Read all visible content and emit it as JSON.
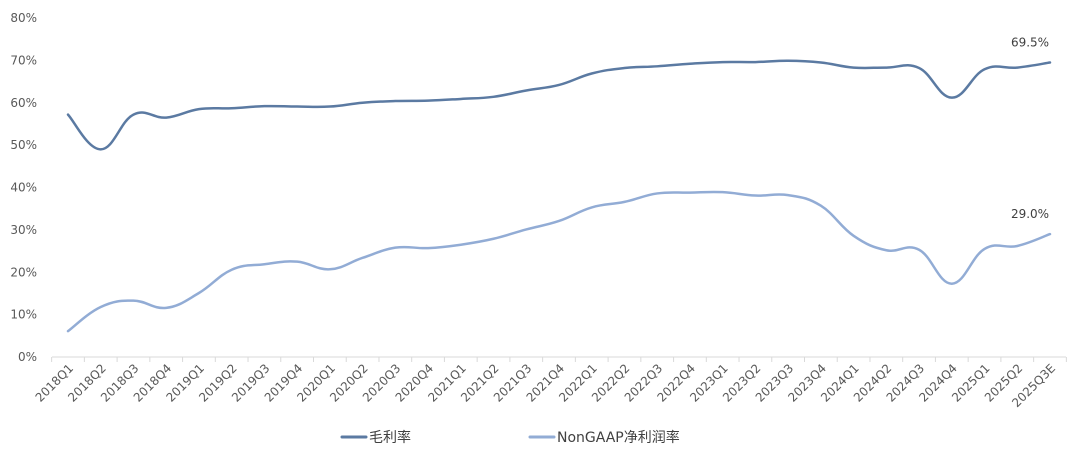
{
  "chart_data": {
    "type": "line",
    "title": "",
    "xlabel": "",
    "ylabel": "",
    "ylim": [
      0,
      80
    ],
    "yticks": [
      "0%",
      "10%",
      "20%",
      "30%",
      "40%",
      "50%",
      "60%",
      "70%",
      "80%"
    ],
    "grid": false,
    "legend_position": "bottom",
    "categories": [
      "2018Q1",
      "2018Q2",
      "2018Q3",
      "2018Q4",
      "2019Q1",
      "2019Q2",
      "2019Q3",
      "2019Q4",
      "2020Q1",
      "2020Q2",
      "2020Q3",
      "2020Q4",
      "2021Q1",
      "2021Q2",
      "2021Q3",
      "2021Q4",
      "2022Q1",
      "2022Q2",
      "2022Q3",
      "2022Q4",
      "2023Q1",
      "2023Q2",
      "2023Q3",
      "2023Q4",
      "2024Q1",
      "2024Q2",
      "2024Q3",
      "2024Q4",
      "2025Q1",
      "2025Q2",
      "2025Q3E"
    ],
    "series": [
      {
        "name": "毛利率",
        "color": "#5b7aa2",
        "values": [
          57.2,
          49.0,
          57.2,
          56.5,
          58.5,
          58.7,
          59.2,
          59.1,
          59.1,
          60.0,
          60.4,
          60.5,
          60.9,
          61.4,
          62.9,
          64.2,
          66.9,
          68.2,
          68.6,
          69.2,
          69.6,
          69.6,
          69.9,
          69.5,
          68.3,
          68.3,
          68.2,
          61.2,
          67.9,
          68.3,
          69.5
        ],
        "end_label": "69.5%"
      },
      {
        "name": "NonGAAP净利润率",
        "color": "#92acd5",
        "values": [
          6.1,
          11.8,
          13.3,
          11.6,
          15.1,
          20.6,
          21.9,
          22.5,
          20.7,
          23.4,
          25.8,
          25.7,
          26.5,
          27.9,
          30.1,
          32.1,
          35.3,
          36.6,
          38.6,
          38.8,
          38.9,
          38.1,
          38.2,
          35.7,
          28.6,
          25.2,
          25.3,
          17.3,
          25.5,
          26.2,
          29.0
        ],
        "end_label": "29.0%"
      }
    ]
  }
}
